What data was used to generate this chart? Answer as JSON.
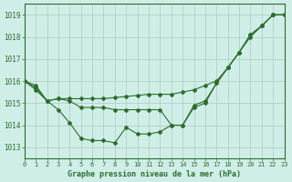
{
  "title": "Graphe pression niveau de la mer (hPa)",
  "background_color": "#d0eee8",
  "grid_color": "#aaccbb",
  "line_color": "#2d6e2d",
  "xlim": [
    0,
    23
  ],
  "ylim": [
    1012.5,
    1019.5
  ],
  "yticks": [
    1013,
    1014,
    1015,
    1016,
    1017,
    1018,
    1019
  ],
  "xticks": [
    0,
    1,
    2,
    3,
    4,
    5,
    6,
    7,
    8,
    9,
    10,
    11,
    12,
    13,
    14,
    15,
    16,
    17,
    18,
    19,
    20,
    21,
    22,
    23
  ],
  "line1_x": [
    0,
    1,
    2,
    3,
    4,
    5,
    6,
    7,
    8,
    9,
    10,
    11,
    12,
    13,
    14,
    15,
    16,
    17,
    18,
    19,
    20,
    21,
    22,
    23
  ],
  "line1_y": [
    1016.0,
    1015.8,
    1015.1,
    1015.2,
    1015.2,
    1015.2,
    1015.2,
    1015.2,
    1015.25,
    1015.3,
    1015.35,
    1015.4,
    1015.4,
    1015.4,
    1015.5,
    1015.6,
    1015.8,
    1016.0,
    1016.6,
    1017.3,
    1018.0,
    1018.5,
    1019.0,
    1019.0
  ],
  "line2_x": [
    0,
    1,
    2,
    3,
    4,
    5,
    6,
    7,
    8,
    9,
    10,
    11,
    12,
    13,
    14,
    15,
    16,
    17,
    18,
    19,
    20,
    21,
    22,
    23
  ],
  "line2_y": [
    1016.0,
    1015.7,
    1015.1,
    1015.2,
    1015.1,
    1014.8,
    1014.8,
    1014.8,
    1014.7,
    1014.7,
    1014.7,
    1014.7,
    1014.7,
    1014.0,
    1014.0,
    1014.9,
    1015.1,
    1015.9,
    1016.6,
    1017.3,
    1018.1,
    1018.5,
    1019.0,
    1019.0
  ],
  "line3_x": [
    0,
    1,
    2,
    3,
    4,
    5,
    6,
    7,
    8,
    9,
    10,
    11,
    12,
    13,
    14,
    15,
    16,
    17,
    18,
    19,
    20,
    21,
    22,
    23
  ],
  "line3_y": [
    1016.0,
    1015.6,
    1015.1,
    1014.7,
    1014.1,
    1013.4,
    1013.3,
    1013.3,
    1013.2,
    1013.9,
    1013.6,
    1013.6,
    1013.7,
    1014.0,
    1014.0,
    1014.8,
    1015.0,
    1015.9,
    1016.6,
    1017.3,
    1018.1,
    1018.5,
    1019.0,
    1019.0
  ]
}
